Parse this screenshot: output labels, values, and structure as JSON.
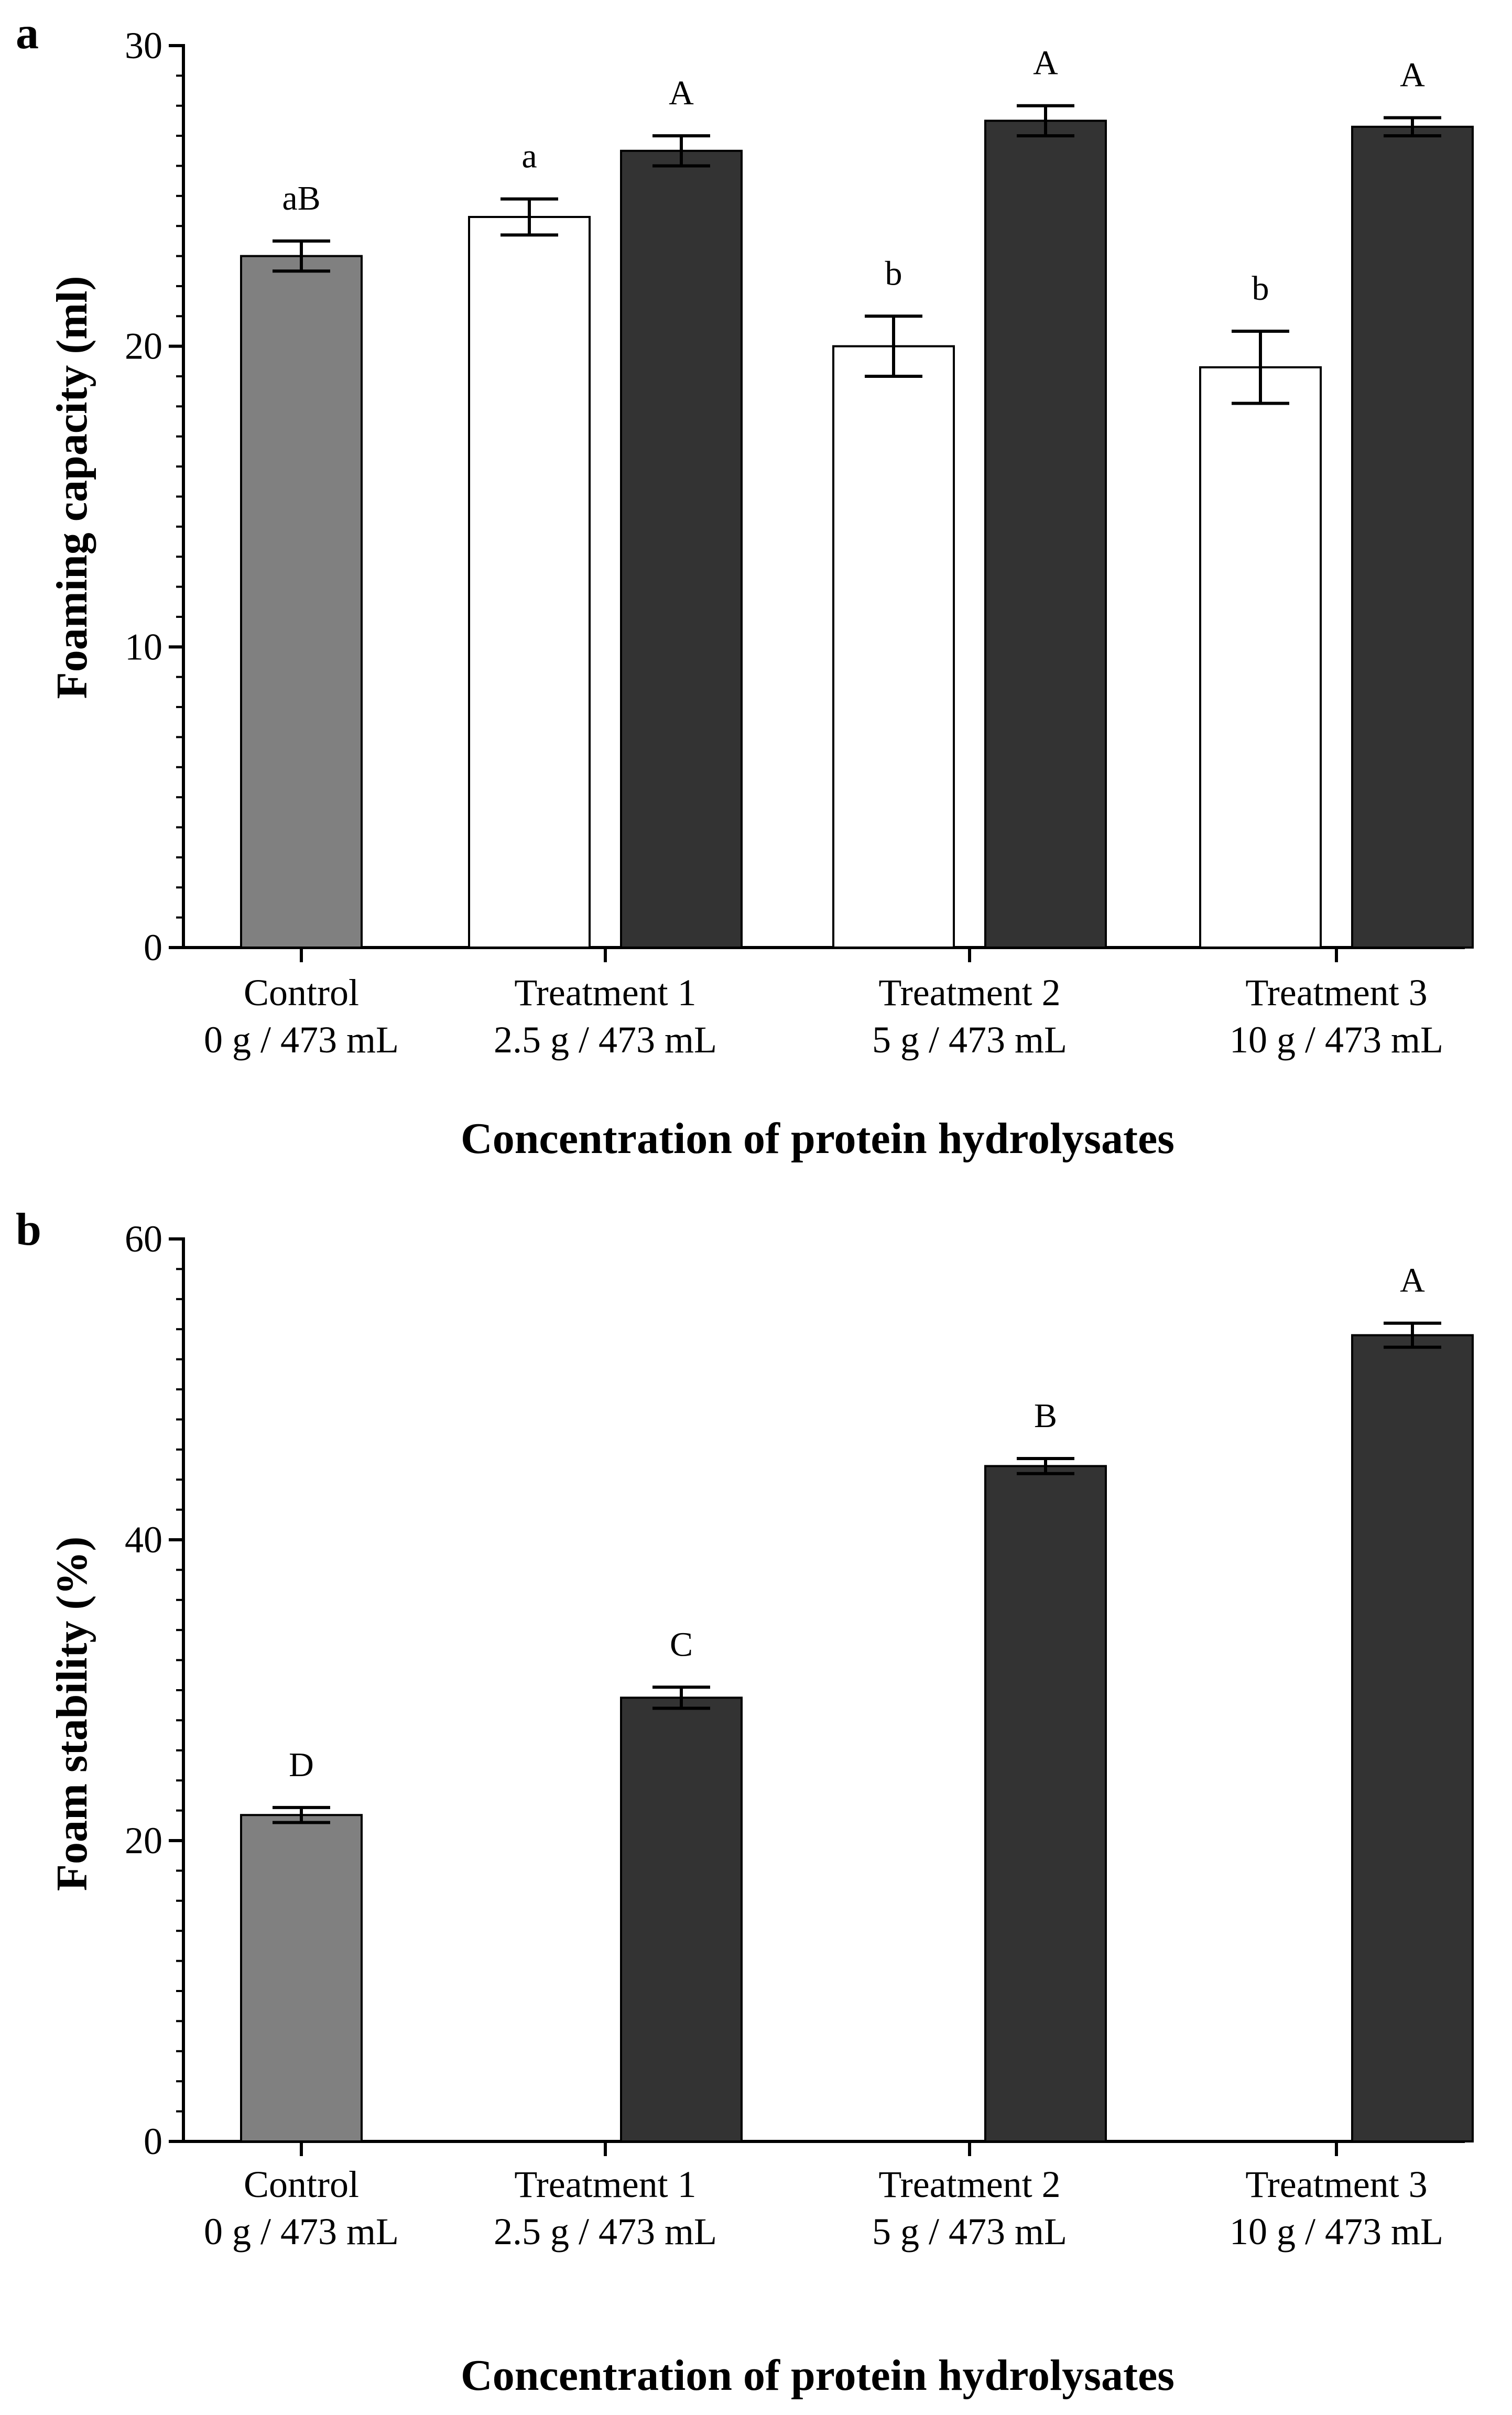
{
  "chart_data": [
    {
      "panel": "a",
      "type": "bar",
      "title": "",
      "xlabel": "Concentration of protein hydrolysates",
      "ylabel": "Foaming capacity (ml)",
      "ylim": [
        0,
        30
      ],
      "yticks": [
        0,
        10,
        20,
        30
      ],
      "categories": [
        {
          "line1": "Control",
          "line2": "0 g / 473 mL"
        },
        {
          "line1": "Treatment 1",
          "line2": "2.5 g / 473 mL"
        },
        {
          "line1": "Treatment 2",
          "line2": "5 g / 473 mL"
        },
        {
          "line1": "Treatment 3",
          "line2": "10 g / 473 mL"
        }
      ],
      "bars": [
        {
          "group": 0,
          "slot": "center",
          "value": 23.0,
          "error": 0.5,
          "label": "aB",
          "color": "#808080"
        },
        {
          "group": 1,
          "slot": "left",
          "value": 24.3,
          "error": 0.6,
          "label": "a",
          "color": "#ffffff"
        },
        {
          "group": 1,
          "slot": "right",
          "value": 26.5,
          "error": 0.5,
          "label": "A",
          "color": "#333333"
        },
        {
          "group": 2,
          "slot": "left",
          "value": 20.0,
          "error": 1.0,
          "label": "b",
          "color": "#ffffff"
        },
        {
          "group": 2,
          "slot": "right",
          "value": 27.5,
          "error": 0.5,
          "label": "A",
          "color": "#333333"
        },
        {
          "group": 3,
          "slot": "left",
          "value": 19.3,
          "error": 1.2,
          "label": "b",
          "color": "#ffffff"
        },
        {
          "group": 3,
          "slot": "right",
          "value": 27.3,
          "error": 0.3,
          "label": "A",
          "color": "#333333"
        }
      ]
    },
    {
      "panel": "b",
      "type": "bar",
      "title": "",
      "xlabel": "Concentration of protein hydrolysates",
      "ylabel": "Foam stability (%)",
      "ylim": [
        0,
        60
      ],
      "yticks": [
        0,
        20,
        40,
        60
      ],
      "categories": [
        {
          "line1": "Control",
          "line2": "0 g / 473 mL"
        },
        {
          "line1": "Treatment 1",
          "line2": "2.5 g / 473 mL"
        },
        {
          "line1": "Treatment 2",
          "line2": "5 g / 473 mL"
        },
        {
          "line1": "Treatment 3",
          "line2": "10 g / 473 mL"
        }
      ],
      "bars": [
        {
          "group": 0,
          "slot": "center",
          "value": 21.7,
          "error": 0.5,
          "label": "D",
          "color": "#808080"
        },
        {
          "group": 1,
          "slot": "right",
          "value": 29.5,
          "error": 0.7,
          "label": "C",
          "color": "#333333"
        },
        {
          "group": 2,
          "slot": "right",
          "value": 44.9,
          "error": 0.5,
          "label": "B",
          "color": "#333333"
        },
        {
          "group": 3,
          "slot": "right",
          "value": 53.6,
          "error": 0.8,
          "label": "A",
          "color": "#333333"
        }
      ]
    }
  ]
}
